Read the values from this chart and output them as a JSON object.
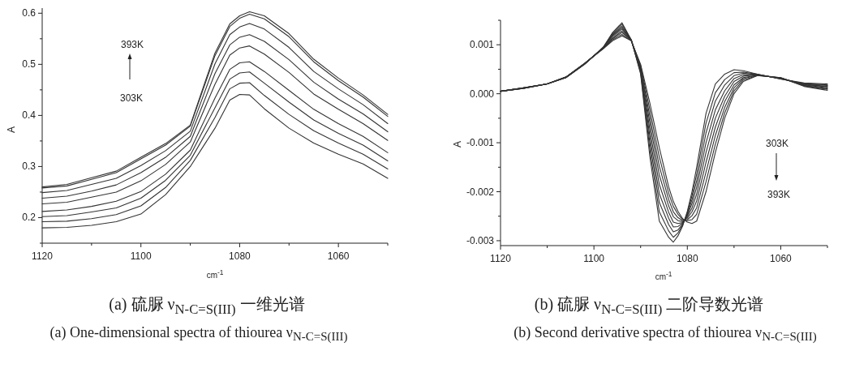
{
  "chart_data": [
    {
      "type": "line",
      "xlabel": "cm$^{-1}$",
      "ylabel": "A",
      "xlim": [
        1120,
        1050
      ],
      "ylim": [
        0.15,
        0.61
      ],
      "xticks": [
        1120,
        1100,
        1080,
        1060
      ],
      "yticks": [
        0.2,
        0.3,
        0.4,
        0.5,
        0.6
      ],
      "x": [
        1120,
        1115,
        1110,
        1105,
        1100,
        1095,
        1090,
        1085,
        1082,
        1080,
        1078,
        1075,
        1070,
        1065,
        1060,
        1055,
        1050
      ],
      "series": [
        {
          "color": "#333333",
          "values": [
            0.18,
            0.181,
            0.185,
            0.192,
            0.207,
            0.245,
            0.3,
            0.375,
            0.43,
            0.441,
            0.44,
            0.413,
            0.375,
            0.346,
            0.324,
            0.305,
            0.277
          ]
        },
        {
          "color": "#333333",
          "values": [
            0.192,
            0.193,
            0.198,
            0.206,
            0.223,
            0.259,
            0.312,
            0.396,
            0.452,
            0.463,
            0.464,
            0.439,
            0.402,
            0.37,
            0.346,
            0.324,
            0.295
          ]
        },
        {
          "color": "#333333",
          "values": [
            0.202,
            0.204,
            0.211,
            0.219,
            0.238,
            0.273,
            0.322,
            0.415,
            0.471,
            0.483,
            0.485,
            0.463,
            0.426,
            0.391,
            0.365,
            0.342,
            0.311
          ]
        },
        {
          "color": "#333333",
          "values": [
            0.212,
            0.215,
            0.222,
            0.232,
            0.251,
            0.285,
            0.332,
            0.434,
            0.49,
            0.503,
            0.505,
            0.486,
            0.449,
            0.412,
            0.384,
            0.359,
            0.327
          ]
        },
        {
          "color": "#333333",
          "values": [
            0.227,
            0.23,
            0.24,
            0.25,
            0.272,
            0.304,
            0.348,
            0.461,
            0.518,
            0.532,
            0.536,
            0.52,
            0.484,
            0.442,
            0.412,
            0.384,
            0.351
          ]
        },
        {
          "color": "#333333",
          "values": [
            0.238,
            0.242,
            0.252,
            0.264,
            0.288,
            0.318,
            0.359,
            0.482,
            0.538,
            0.553,
            0.558,
            0.545,
            0.509,
            0.465,
            0.432,
            0.403,
            0.368
          ]
        },
        {
          "color": "#333333",
          "values": [
            0.249,
            0.253,
            0.265,
            0.277,
            0.302,
            0.331,
            0.369,
            0.501,
            0.558,
            0.573,
            0.58,
            0.569,
            0.533,
            0.486,
            0.452,
            0.421,
            0.384
          ]
        },
        {
          "color": "#333333",
          "values": [
            0.258,
            0.262,
            0.275,
            0.288,
            0.315,
            0.342,
            0.379,
            0.517,
            0.574,
            0.59,
            0.598,
            0.589,
            0.554,
            0.505,
            0.468,
            0.436,
            0.398
          ]
        },
        {
          "color": "#333333",
          "values": [
            0.26,
            0.265,
            0.278,
            0.291,
            0.318,
            0.345,
            0.381,
            0.522,
            0.579,
            0.595,
            0.603,
            0.595,
            0.56,
            0.51,
            0.473,
            0.44,
            0.402
          ]
        }
      ],
      "annotations": [
        "303K",
        "393K",
        "(a)  硫脲 ν$_{N-C=S(III)}$ 一维光谱",
        "(a) One-dimensional spectra of thiourea ν$_{N-C=S(III)}$"
      ]
    },
    {
      "type": "line",
      "xlabel": "cm$^{-1}$",
      "ylabel": "A",
      "xlim": [
        1120,
        1050
      ],
      "ylim": [
        -0.0031,
        0.0015
      ],
      "xticks": [
        1120,
        1100,
        1080,
        1060
      ],
      "yticks": [
        0.001,
        {
          "value": 0,
          "label": "0.000"
        },
        -0.001,
        -0.002,
        -0.003
      ],
      "x": [
        1120,
        1115,
        1110,
        1106,
        1102,
        1098,
        1096,
        1094,
        1092,
        1090,
        1088,
        1086,
        1084,
        1083,
        1082,
        1081,
        1080,
        1079,
        1078,
        1076,
        1074,
        1072,
        1070,
        1068,
        1065,
        1060,
        1055,
        1050
      ],
      "series": [
        {
          "color": "#333333",
          "values": [
            5e-05,
            0.00012,
            0.0002,
            0.00033,
            0.0006,
            0.00095,
            0.00125,
            0.00145,
            0.0011,
            0.0004,
            -0.0013,
            -0.0026,
            -0.00293,
            -0.00303,
            -0.0029,
            -0.0027,
            -0.0024,
            -0.002,
            -0.0015,
            -0.0004,
            0.0002,
            0.0004,
            0.00049,
            0.00047,
            0.0004,
            0.0003,
            0.00022,
            0.0002
          ]
        },
        {
          "color": "#333333",
          "values": [
            5e-05,
            0.00012,
            0.0002,
            0.00033,
            0.0006,
            0.00095,
            0.00123,
            0.00142,
            0.0011,
            0.00043,
            -0.00116,
            -0.00241,
            -0.0028,
            -0.00293,
            -0.00284,
            -0.00268,
            -0.00243,
            -0.00208,
            -0.00164,
            -0.0006,
            2e-05,
            0.00029,
            0.00043,
            0.00044,
            0.0004,
            0.0003,
            0.00021,
            0.00018
          ]
        },
        {
          "color": "#333333",
          "values": [
            5e-05,
            0.00012,
            0.0002,
            0.00033,
            0.00061,
            0.00094,
            0.00121,
            0.00138,
            0.0011,
            0.00045,
            -0.00102,
            -0.00222,
            -0.00267,
            -0.00282,
            -0.00278,
            -0.00266,
            -0.00246,
            -0.00216,
            -0.00178,
            -0.0008,
            -0.00015,
            0.00018,
            0.00037,
            0.00042,
            0.00039,
            0.00031,
            0.0002,
            0.00017
          ]
        },
        {
          "color": "#333333",
          "values": [
            5e-05,
            0.00012,
            0.0002,
            0.00033,
            0.00061,
            0.00094,
            0.00119,
            0.00135,
            0.00109,
            0.00048,
            -0.00089,
            -0.00204,
            -0.00254,
            -0.00272,
            -0.00271,
            -0.00264,
            -0.00248,
            -0.00224,
            -0.00191,
            -0.001,
            -0.00033,
            6e-05,
            0.00031,
            0.00039,
            0.00039,
            0.00031,
            0.00019,
            0.00015
          ]
        },
        {
          "color": "#333333",
          "values": [
            5e-05,
            0.00012,
            0.0002,
            0.00034,
            0.00061,
            0.00094,
            0.00117,
            0.00132,
            0.00109,
            0.0005,
            -0.00075,
            -0.00185,
            -0.00242,
            -0.00262,
            -0.00265,
            -0.00263,
            -0.00251,
            -0.00233,
            -0.00205,
            -0.0012,
            -0.0005,
            -5e-05,
            0.00025,
            0.00036,
            0.00039,
            0.00032,
            0.00019,
            0.00014
          ]
        },
        {
          "color": "#333333",
          "values": [
            5e-05,
            0.00011,
            0.0002,
            0.00034,
            0.00061,
            0.00093,
            0.00114,
            0.00128,
            0.00109,
            0.00053,
            -0.00061,
            -0.00166,
            -0.00229,
            -0.00251,
            -0.00259,
            -0.00261,
            -0.00254,
            -0.00241,
            -0.00219,
            -0.0014,
            -0.00068,
            -0.00016,
            0.00018,
            0.00033,
            0.00038,
            0.00032,
            0.00018,
            0.00012
          ]
        },
        {
          "color": "#333333",
          "values": [
            5e-05,
            0.00011,
            0.0002,
            0.00034,
            0.00062,
            0.00093,
            0.00112,
            0.00125,
            0.00109,
            0.00055,
            -0.00048,
            -0.00148,
            -0.00216,
            -0.00241,
            -0.00253,
            -0.00259,
            -0.00257,
            -0.00249,
            -0.00233,
            -0.0016,
            -0.00085,
            -0.00028,
            0.00012,
            0.00031,
            0.00038,
            0.00032,
            0.00017,
            0.0001
          ]
        },
        {
          "color": "#333333",
          "values": [
            5e-05,
            0.00011,
            0.0002,
            0.00034,
            0.00062,
            0.00092,
            0.0011,
            0.00121,
            0.00108,
            0.00058,
            -0.00034,
            -0.00129,
            -0.00203,
            -0.0023,
            -0.00246,
            -0.00257,
            -0.00259,
            -0.00257,
            -0.00246,
            -0.0018,
            -0.00103,
            -0.00039,
            6e-05,
            0.00028,
            0.00037,
            0.00033,
            0.00016,
            9e-05
          ]
        },
        {
          "color": "#333333",
          "values": [
            5e-05,
            0.00011,
            0.0002,
            0.00034,
            0.00062,
            0.00092,
            0.00108,
            0.00118,
            0.00108,
            0.0006,
            -0.0002,
            -0.0011,
            -0.0019,
            -0.0022,
            -0.0024,
            -0.00255,
            -0.00262,
            -0.00265,
            -0.0026,
            -0.002,
            -0.0012,
            -0.0005,
            0,
            0.00025,
            0.00037,
            0.00033,
            0.00015,
            7e-05
          ]
        }
      ],
      "annotations": [
        "303K",
        "393K",
        "(b)  硫脲 ν$_{N-C=S(III)}$ 二阶导数光谱",
        "(b) Second derivative spectra of thiourea ν$_{N-C=S(III)}$"
      ]
    }
  ]
}
